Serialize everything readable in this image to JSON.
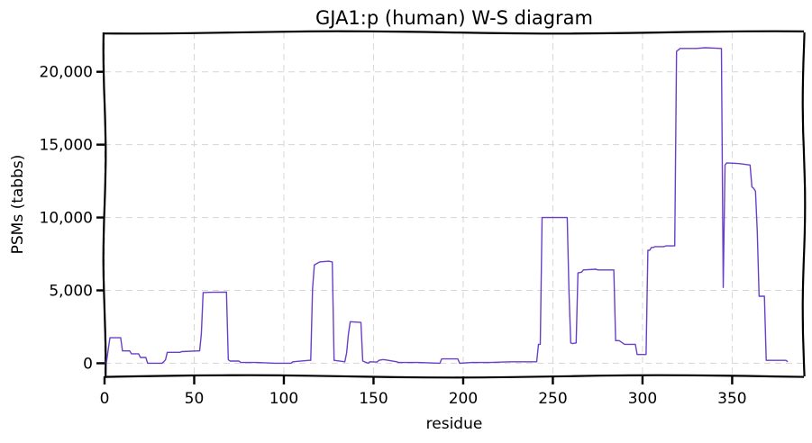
{
  "chart_data": {
    "type": "line",
    "title": "GJA1:p (human) W-S diagram",
    "xlabel": "residue",
    "ylabel": "PSMs (tabbs)",
    "xlim": [
      0,
      390
    ],
    "ylim": [
      -900,
      22700
    ],
    "xticks": [
      0,
      50,
      100,
      150,
      200,
      250,
      300,
      350
    ],
    "xtick_labels": [
      "0",
      "50",
      "100",
      "150",
      "200",
      "250",
      "300",
      "350"
    ],
    "yticks": [
      0,
      5000,
      10000,
      15000,
      20000
    ],
    "ytick_labels": [
      "0",
      "5,000",
      "10,000",
      "15,000",
      "20,000"
    ],
    "grid": true,
    "series": [
      {
        "color": "#6a3fc8",
        "x": [
          1,
          2,
          3,
          9,
          10,
          14,
          15,
          19,
          20,
          23,
          24,
          32,
          33,
          34,
          35,
          42,
          43,
          52,
          53,
          54,
          55,
          60,
          68,
          69,
          70,
          75,
          76,
          85,
          95,
          104,
          105,
          114,
          115,
          116,
          117,
          120,
          125,
          127,
          128,
          134,
          135,
          136,
          137,
          143,
          144,
          147,
          148,
          152,
          153,
          155,
          156,
          163,
          164,
          175,
          187,
          188,
          195,
          197,
          198,
          205,
          215,
          226,
          241,
          242,
          243,
          244,
          250,
          258,
          259,
          260,
          261,
          263,
          264,
          266,
          267,
          274,
          275,
          284,
          285,
          286,
          287,
          290,
          291,
          296,
          297,
          298,
          299,
          302,
          303,
          304,
          305,
          306,
          307,
          312,
          313,
          318,
          319,
          320,
          321,
          330,
          335,
          344,
          345,
          346,
          347,
          354,
          360,
          361,
          362,
          363,
          364,
          365,
          366,
          368,
          369,
          370,
          372,
          373,
          374,
          380,
          381
        ],
        "y": [
          0,
          900,
          1750,
          1750,
          850,
          850,
          650,
          650,
          400,
          400,
          0,
          0,
          100,
          250,
          750,
          750,
          800,
          850,
          850,
          2000,
          4850,
          4870,
          4880,
          250,
          150,
          150,
          50,
          50,
          0,
          0,
          100,
          200,
          200,
          5100,
          6750,
          6950,
          7000,
          6950,
          200,
          100,
          700,
          2000,
          2850,
          2800,
          150,
          0,
          100,
          80,
          200,
          250,
          250,
          100,
          50,
          50,
          0,
          300,
          300,
          300,
          0,
          50,
          50,
          100,
          100,
          1300,
          1300,
          10000,
          10000,
          10000,
          5000,
          1400,
          1350,
          1400,
          6200,
          6250,
          6400,
          6450,
          6400,
          6400,
          1550,
          1550,
          1550,
          1300,
          1300,
          1300,
          600,
          600,
          600,
          600,
          7750,
          7750,
          7950,
          7950,
          8000,
          8000,
          8050,
          8050,
          21400,
          21500,
          21600,
          21600,
          21650,
          21600,
          5200,
          13600,
          13750,
          13700,
          13600,
          12100,
          12000,
          11800,
          9000,
          4600,
          4600,
          4600,
          200,
          200,
          200,
          200,
          200,
          200,
          100
        ]
      }
    ]
  }
}
